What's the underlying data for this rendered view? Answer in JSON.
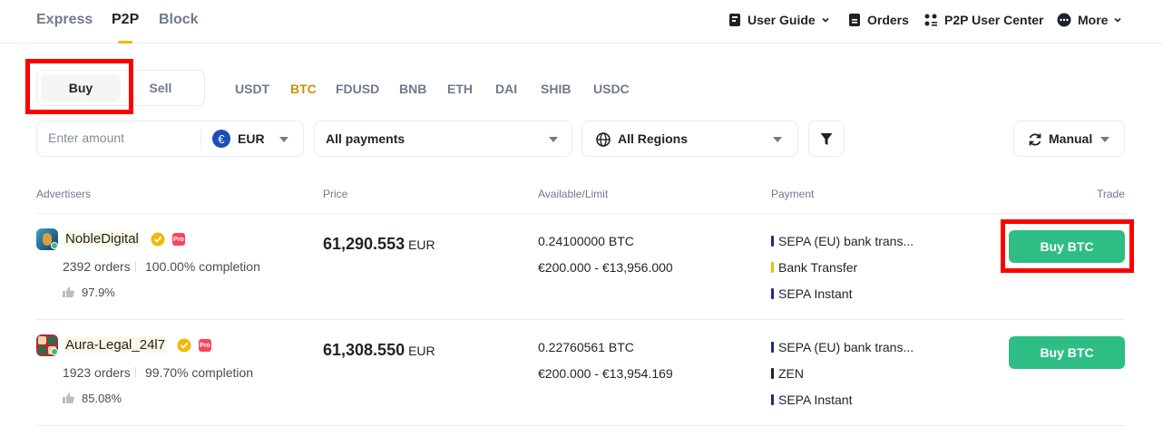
{
  "topnav": {
    "tabs": [
      {
        "label": "Express"
      },
      {
        "label": "P2P"
      },
      {
        "label": "Block"
      }
    ],
    "links": {
      "user_guide": "User Guide",
      "orders": "Orders",
      "user_center": "P2P User Center",
      "more": "More"
    }
  },
  "trade_toggle": {
    "buy": "Buy",
    "sell": "Sell"
  },
  "assets": [
    "USDT",
    "BTC",
    "FDUSD",
    "BNB",
    "ETH",
    "DAI",
    "SHIB",
    "USDC"
  ],
  "selected_asset": "BTC",
  "filters": {
    "amount_placeholder": "Enter amount",
    "currency": "EUR",
    "currency_symbol": "€",
    "payments": "All payments",
    "regions": "All Regions",
    "refresh_mode": "Manual"
  },
  "table": {
    "headers": {
      "advertisers": "Advertisers",
      "price": "Price",
      "available": "Available/Limit",
      "payment": "Payment",
      "trade": "Trade"
    },
    "rows": [
      {
        "name": "NobleDigital",
        "orders": "2392 orders",
        "completion": "100.00% completion",
        "rating": "97.9%",
        "price": "61,290.553",
        "price_currency": "EUR",
        "available": "0.24100000 BTC",
        "limit": "€200.000 - €13,956.000",
        "payments": [
          {
            "label": "SEPA (EU) bank trans...",
            "color": "#1a2a8c"
          },
          {
            "label": "Bank Transfer",
            "color": "#f0b90b"
          },
          {
            "label": "SEPA Instant",
            "color": "#1a2a8c"
          }
        ],
        "action": "Buy BTC"
      },
      {
        "name": "Aura-Legal_24l7",
        "orders": "1923 orders",
        "completion": "99.70% completion",
        "rating": "85.08%",
        "price": "61,308.550",
        "price_currency": "EUR",
        "available": "0.22760561 BTC",
        "limit": "€200.000 - €13,954.169",
        "payments": [
          {
            "label": "SEPA (EU) bank trans...",
            "color": "#1a2a8c"
          },
          {
            "label": "ZEN",
            "color": "#1e2329"
          },
          {
            "label": "SEPA Instant",
            "color": "#1a2a8c"
          }
        ],
        "action": "Buy BTC"
      }
    ]
  },
  "colors": {
    "accent": "#f0b90b",
    "buy_green": "#2ebd85",
    "highlight": "#ff0000"
  }
}
